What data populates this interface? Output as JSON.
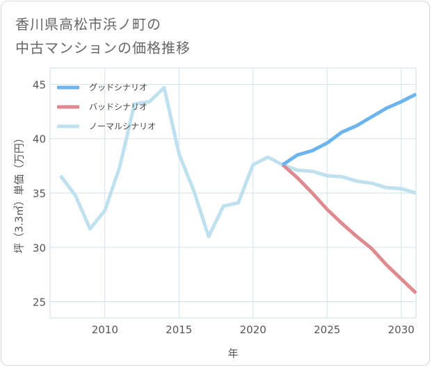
{
  "title": {
    "line1": "香川県高松市浜ノ町の",
    "line2": "中古マンションの価格推移"
  },
  "chart_data": {
    "type": "line",
    "xlabel": "年",
    "ylabel": "坪（3.3㎡）単価（万円）",
    "xlim": [
      2006.3,
      2031
    ],
    "ylim": [
      23.5,
      46.5
    ],
    "xticks": [
      2010,
      2015,
      2020,
      2025,
      2030
    ],
    "yticks": [
      25,
      30,
      35,
      40,
      45
    ],
    "grid": true,
    "legend_position": "top-left",
    "series": [
      {
        "name": "グッドシナリオ",
        "color": "#6cb4ee",
        "x": [
          2022,
          2023,
          2024,
          2025,
          2026,
          2027,
          2028,
          2029,
          2030,
          2031
        ],
        "y": [
          37.6,
          38.5,
          38.9,
          39.6,
          40.6,
          41.2,
          42.0,
          42.8,
          43.4,
          44.1
        ]
      },
      {
        "name": "バッドシナリオ",
        "color": "#de8a90",
        "x": [
          2022,
          2023,
          2024,
          2025,
          2026,
          2027,
          2028,
          2029,
          2030,
          2031
        ],
        "y": [
          37.6,
          36.4,
          35.0,
          33.5,
          32.2,
          31.0,
          29.9,
          28.4,
          27.1,
          25.8
        ]
      },
      {
        "name": "ノーマルシナリオ",
        "color": "#bfe0ee",
        "x": [
          2007,
          2008,
          2009,
          2010,
          2011,
          2012,
          2013,
          2014,
          2015,
          2016,
          2017,
          2018,
          2019,
          2020,
          2021,
          2022,
          2023,
          2024,
          2025,
          2026,
          2027,
          2028,
          2029,
          2030,
          2031
        ],
        "y": [
          36.6,
          34.8,
          31.7,
          33.4,
          37.4,
          43.2,
          43.4,
          44.7,
          38.6,
          35.2,
          31.0,
          33.8,
          34.1,
          37.6,
          38.3,
          37.6,
          37.1,
          37.0,
          36.6,
          36.5,
          36.1,
          35.9,
          35.5,
          35.4,
          35.0
        ]
      }
    ]
  }
}
